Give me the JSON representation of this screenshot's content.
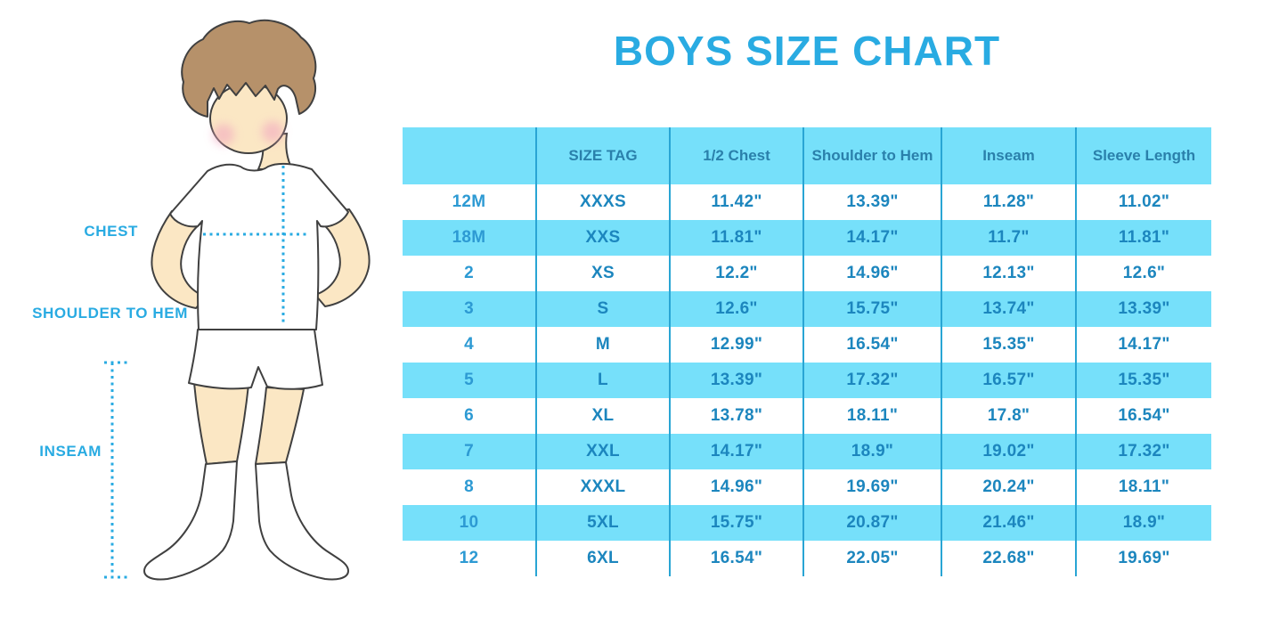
{
  "title": "BOYS SIZE CHART",
  "figure": {
    "labels": {
      "chest": "CHEST",
      "shoulder_to_hem": "SHOULDER TO HEM",
      "inseam": "INSEAM"
    }
  },
  "colors": {
    "accent": "#29ABE2",
    "row_fill": "#76E0FA",
    "divider": "#29A5D4",
    "cell_text": "#1C86BE",
    "size_col_text": "#2D9AD3",
    "header_text": "#2A80AB",
    "skin": "#FBE7C4",
    "hair": "#B6916A",
    "cheek": "#F2A9C0",
    "outline": "#404040"
  },
  "chart_data": {
    "type": "table",
    "title": "BOYS SIZE CHART",
    "columns": [
      "",
      "SIZE TAG",
      "1/2 Chest",
      "Shoulder to Hem",
      "Inseam",
      "Sleeve Length"
    ],
    "rows": [
      [
        "12M",
        "XXXS",
        "11.42\"",
        "13.39\"",
        "11.28\"",
        "11.02\""
      ],
      [
        "18M",
        "XXS",
        "11.81\"",
        "14.17\"",
        "11.7\"",
        "11.81\""
      ],
      [
        "2",
        "XS",
        "12.2\"",
        "14.96\"",
        "12.13\"",
        "12.6\""
      ],
      [
        "3",
        "S",
        "12.6\"",
        "15.75\"",
        "13.74\"",
        "13.39\""
      ],
      [
        "4",
        "M",
        "12.99\"",
        "16.54\"",
        "15.35\"",
        "14.17\""
      ],
      [
        "5",
        "L",
        "13.39\"",
        "17.32\"",
        "16.57\"",
        "15.35\""
      ],
      [
        "6",
        "XL",
        "13.78\"",
        "18.11\"",
        "17.8\"",
        "16.54\""
      ],
      [
        "7",
        "XXL",
        "14.17\"",
        "18.9\"",
        "19.02\"",
        "17.32\""
      ],
      [
        "8",
        "XXXL",
        "14.96\"",
        "19.69\"",
        "20.24\"",
        "18.11\""
      ],
      [
        "10",
        "5XL",
        "15.75\"",
        "20.87\"",
        "21.46\"",
        "18.9\""
      ],
      [
        "12",
        "6XL",
        "16.54\"",
        "22.05\"",
        "22.68\"",
        "19.69\""
      ]
    ],
    "row_shading": "header and rows 18M/3/5/7/10 light blue, others white",
    "grid": "vertical column dividers only, no outer border",
    "legend_position": "none"
  }
}
